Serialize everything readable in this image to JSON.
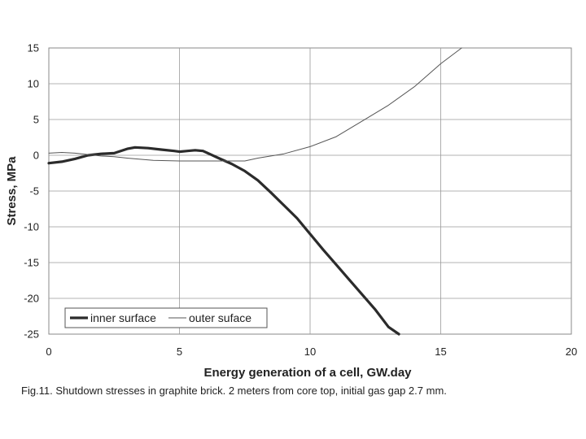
{
  "figure": {
    "caption": "Fig.11. Shutdown stresses in graphite brick. 2 meters from core top, initial gas gap 2.7 mm."
  },
  "chart_data": {
    "type": "line",
    "xlabel": "Energy generation of a cell, GW.day",
    "ylabel": "Stress, MPa",
    "xlim": [
      0,
      20
    ],
    "ylim": [
      -25,
      15
    ],
    "xticks": [
      0,
      5,
      10,
      15,
      20
    ],
    "yticks": [
      15,
      10,
      5,
      0,
      -5,
      -10,
      -15,
      -20,
      -25
    ],
    "grid": true,
    "legend_position": "bottom-left",
    "series": [
      {
        "name": "inner surface",
        "color": "#2b2b2b",
        "style": "thick",
        "x": [
          0,
          0.5,
          1.0,
          1.5,
          2.0,
          2.5,
          3.0,
          3.3,
          3.8,
          4.3,
          4.8,
          5.0,
          5.3,
          5.6,
          5.9,
          6.2,
          6.5,
          7.0,
          7.5,
          8.0,
          8.5,
          9.0,
          9.5,
          10.0,
          10.5,
          11.0,
          11.5,
          12.0,
          12.5,
          13.0,
          13.4
        ],
        "y": [
          -1.1,
          -0.9,
          -0.5,
          0.0,
          0.2,
          0.3,
          0.9,
          1.1,
          1.0,
          0.8,
          0.6,
          0.5,
          0.6,
          0.7,
          0.6,
          0.1,
          -0.4,
          -1.2,
          -2.2,
          -3.5,
          -5.2,
          -7.0,
          -8.8,
          -11.0,
          -13.2,
          -15.3,
          -17.4,
          -19.5,
          -21.6,
          -24.0,
          -25.0
        ]
      },
      {
        "name": "outer suface",
        "color": "#555555",
        "style": "thin",
        "x": [
          0,
          0.5,
          1.0,
          1.5,
          2.0,
          2.5,
          3.0,
          4.0,
          5.0,
          6.0,
          7.0,
          7.5,
          8.0,
          9.0,
          10.0,
          11.0,
          12.0,
          13.0,
          14.0,
          15.0,
          15.8
        ],
        "y": [
          0.3,
          0.4,
          0.3,
          0.1,
          -0.1,
          -0.2,
          -0.4,
          -0.7,
          -0.8,
          -0.8,
          -0.8,
          -0.8,
          -0.4,
          0.2,
          1.2,
          2.6,
          4.8,
          7.0,
          9.6,
          12.8,
          15.0
        ]
      }
    ]
  }
}
